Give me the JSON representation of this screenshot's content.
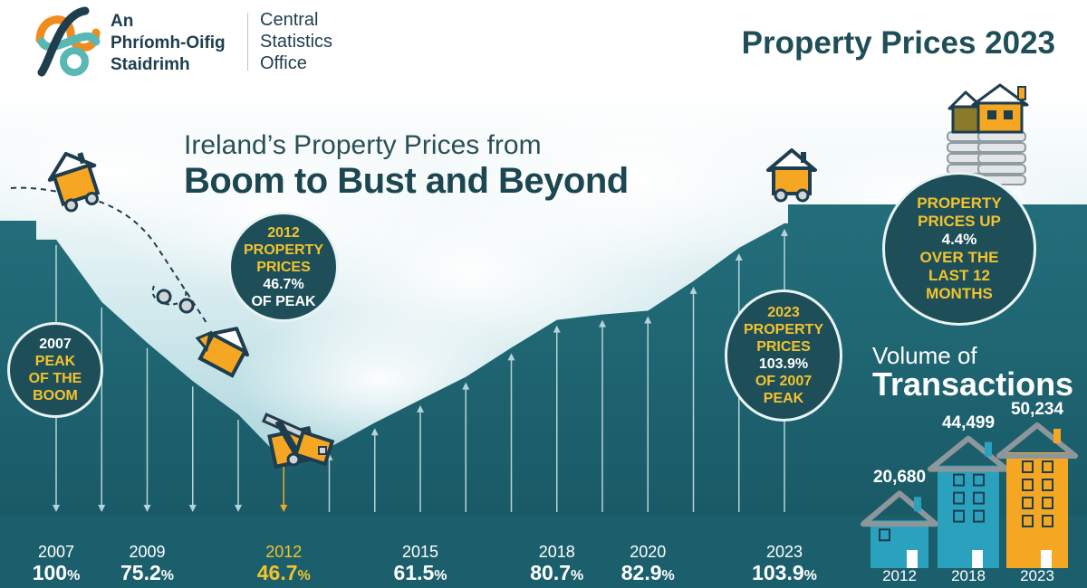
{
  "logo": {
    "irish_name": [
      "An",
      "Phríomh-Oifig",
      "Staidrimh"
    ],
    "english_name": [
      "Central",
      "Statistics",
      "Office"
    ]
  },
  "header": {
    "title": "Property Prices 2023"
  },
  "subtitle": {
    "line1": "Ireland’s Property Prices from",
    "line2": "Boom to Bust and Beyond"
  },
  "callouts": {
    "peak_2007": {
      "y1": "2007",
      "w1": "PEAK",
      "w2": "OF THE",
      "w3": "BOOM"
    },
    "low_2012": {
      "y1": "2012",
      "y2": "PROPERTY",
      "y3": "PRICES",
      "w1": "46.7%",
      "w2": "OF PEAK"
    },
    "now_2023": {
      "y1": "2023",
      "y2": "PROPERTY",
      "y3": "PRICES",
      "w1": "103.9%",
      "w2": "OF 2007",
      "w3": "PEAK"
    },
    "annual": {
      "y1": "PROPERTY",
      "y2": "PRICES UP",
      "w1": "4.4%",
      "w2": "OVER THE",
      "w3": "LAST 12",
      "w4": "MONTHS"
    }
  },
  "chart_data": [
    {
      "type": "area",
      "x": [
        2007,
        2008,
        2009,
        2010,
        2011,
        2012,
        2013,
        2014,
        2015,
        2016,
        2017,
        2018,
        2019,
        2020,
        2021,
        2022,
        2023
      ],
      "values": [
        100,
        85,
        75.2,
        66,
        58,
        46.7,
        50,
        56,
        61.5,
        67,
        74,
        80.7,
        82,
        82.9,
        90,
        98,
        103.9
      ],
      "labels": [
        {
          "year": "2007",
          "value": "100",
          "unit": "%",
          "highlight": false
        },
        {
          "year": "2009",
          "value": "75.2",
          "unit": "%",
          "highlight": false
        },
        {
          "year": "2012",
          "value": "46.7",
          "unit": "%",
          "highlight": true
        },
        {
          "year": "2015",
          "value": "61.5",
          "unit": "%",
          "highlight": false
        },
        {
          "year": "2018",
          "value": "80.7",
          "unit": "%",
          "highlight": false
        },
        {
          "year": "2020",
          "value": "82.9",
          "unit": "%",
          "highlight": false
        },
        {
          "year": "2023",
          "value": "103.9",
          "unit": "%",
          "highlight": false
        }
      ]
    },
    {
      "type": "bar",
      "title_line1": "Volume of",
      "title_line2": "Transactions",
      "categories": [
        "2012",
        "2018",
        "2023"
      ],
      "values": [
        20680,
        44499,
        50234
      ],
      "value_labels": [
        "20,680",
        "44,499",
        "50,234"
      ],
      "colors": [
        "#2aa1bd",
        "#2aa1bd",
        "#f5a623"
      ]
    }
  ],
  "colors": {
    "teal_dark": "#1e5966",
    "teal_fill": "#226775",
    "accent_yellow": "#f2c230",
    "house_orange": "#f5a623",
    "sky": "#b9dde3",
    "logo_orange": "#f08c1e",
    "logo_teal": "#5ab8b4",
    "logo_navy": "#1e3d4e"
  },
  "icons": [
    "logo-knot-icon",
    "house-on-wheels-icon",
    "tumbling-house-icon",
    "broken-house-icon",
    "house-on-coins-icon",
    "town-house-icon"
  ]
}
